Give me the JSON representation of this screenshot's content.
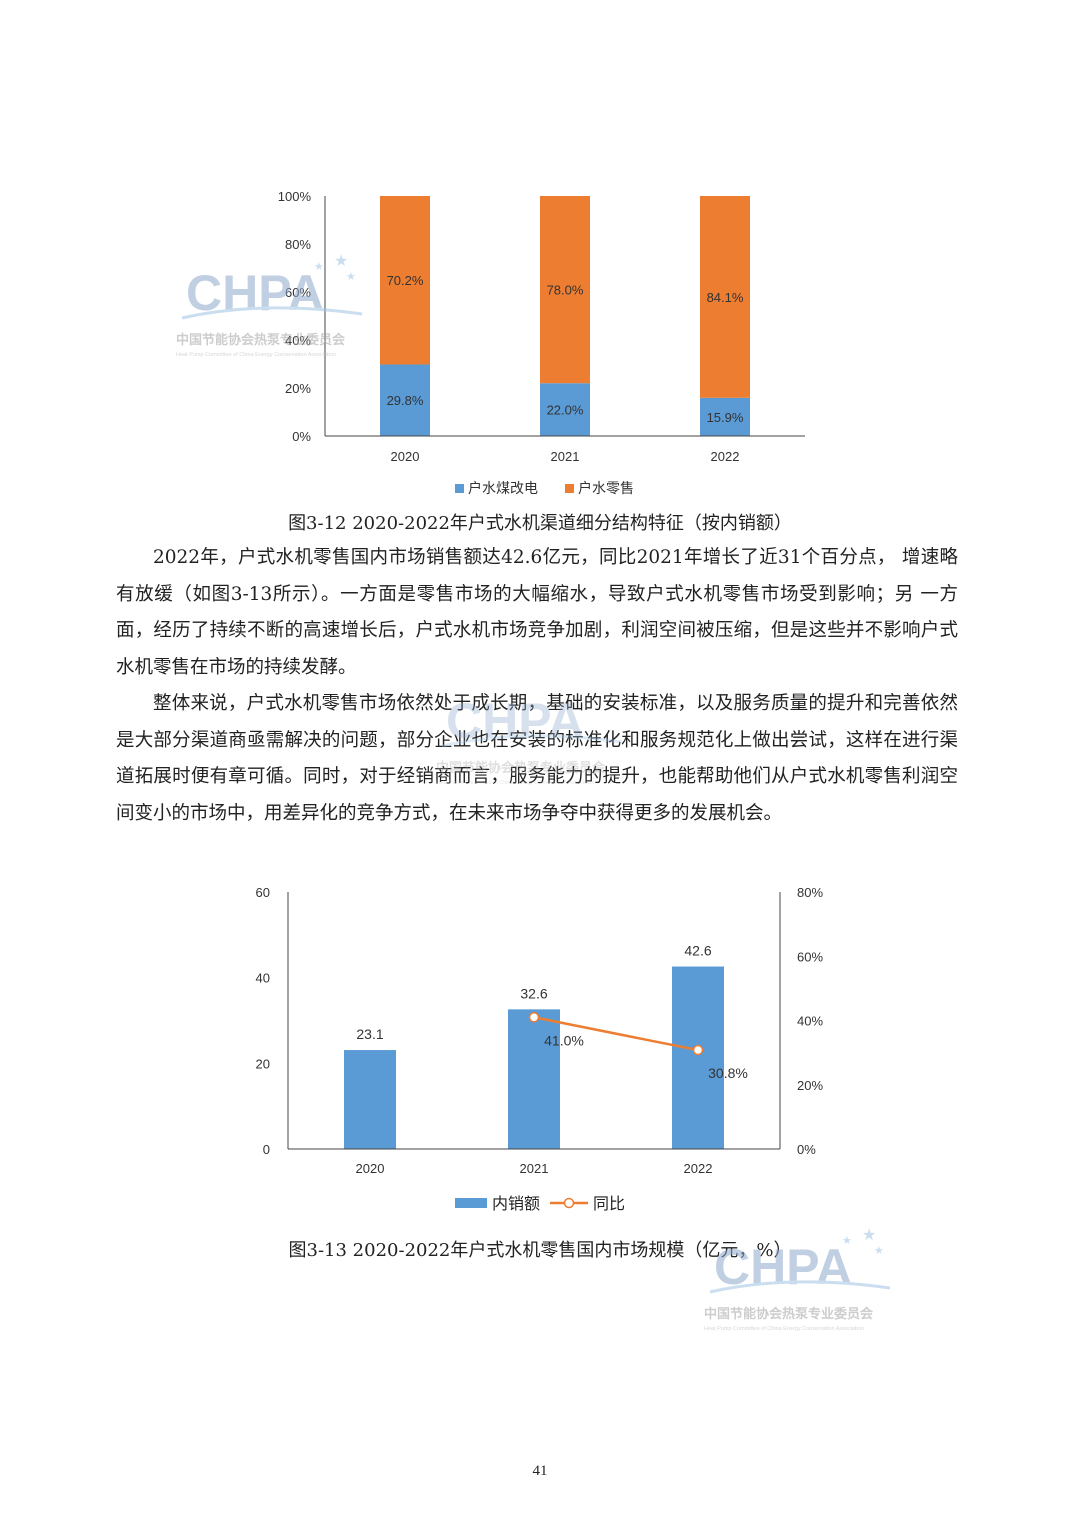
{
  "charts": [
    {
      "type": "bar",
      "stacked": true,
      "categories": [
        "2020",
        "2021",
        "2022"
      ],
      "series": [
        {
          "name": "户水煤改电",
          "values": [
            29.8,
            22.0,
            15.9
          ],
          "labels": [
            "29.8%",
            "22.0%",
            "15.9%"
          ],
          "color": "#5B9BD5"
        },
        {
          "name": "户水零售",
          "values": [
            70.2,
            78.0,
            84.1
          ],
          "labels": [
            "70.2%",
            "78.0%",
            "84.1%"
          ],
          "color": "#ED7D31"
        }
      ],
      "yticks": [
        "0%",
        "20%",
        "40%",
        "60%",
        "80%",
        "100%"
      ],
      "ylim": [
        0,
        100
      ],
      "legend": "bottom"
    },
    {
      "type": "bar+line",
      "categories": [
        "2020",
        "2021",
        "2022"
      ],
      "bar_series": {
        "name": "内销额",
        "values": [
          23.1,
          32.6,
          42.6
        ],
        "labels": [
          "23.1",
          "32.6",
          "42.6"
        ],
        "color": "#5B9BD5"
      },
      "line_series": {
        "name": "同比",
        "x": [
          "2021",
          "2022"
        ],
        "values": [
          41.0,
          30.8
        ],
        "labels": [
          "41.0%",
          "30.8%"
        ],
        "color": "#ED7D31"
      },
      "yticks_left": [
        "0",
        "20",
        "40",
        "60"
      ],
      "ylim_left": [
        0,
        60
      ],
      "yticks_right": [
        "0%",
        "20%",
        "40%",
        "60%",
        "80%"
      ],
      "ylim_right": [
        0,
        80
      ],
      "legend": "bottom"
    }
  ],
  "text": {
    "caption1": "图3-12 2020-2022年户式水机渠道细分结构特征（按内销额）",
    "p1": "2022年，户式水机零售国内市场销售额达42.6亿元，同比2021年增长了近31个百分点， 增速略有放缓（如图3-13所示）。一方面是零售市场的大幅缩水，导致户式水机零售市场受到影响；另 一方面，经历了持续不断的高速增长后，户式水机市场竞争加剧，利润空间被压缩，但是这些并不影响户式水机零售在市场的持续发酵。",
    "p2": "整体来说，户式水机零售市场依然处于成长期，基础的安装标准，以及服务质量的提升和完善依然是大部分渠道商亟需解决的问题，部分企业也在安装的标准化和服务规范化上做出尝试，这样在进行渠道拓展时便有章可循。同时，对于经销商而言，服务能力的提升，也能帮助他们从户式水机零售利润空间变小的市场中，用差异化的竞争方式，在未来市场争夺中获得更多的发展机会。",
    "caption2": "图3-13 2020-2022年户式水机零售国内市场规模（亿元，%）",
    "page_number": "41"
  },
  "watermark": {
    "logo": "CHPA",
    "cn": "中国节能协会热泵专业委员会",
    "en": "Heat Pump Committee of China Energy Conservation Association"
  }
}
